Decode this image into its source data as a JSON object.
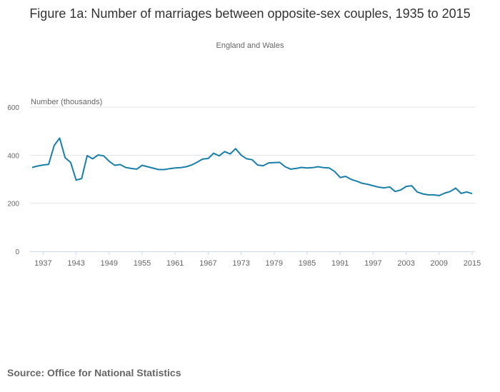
{
  "chart_data": {
    "type": "line",
    "title": "Figure 1a: Number of marriages between opposite-sex couples, 1935 to 2015",
    "subtitle": "England and Wales",
    "ylabel": "Number (thousands)",
    "xlabel": "",
    "ylim": [
      0,
      600
    ],
    "xlim": [
      1935,
      2015
    ],
    "yticks": [
      0,
      200,
      400,
      600
    ],
    "xticks": [
      1937,
      1943,
      1949,
      1955,
      1961,
      1967,
      1973,
      1979,
      1985,
      1991,
      1997,
      2003,
      2009,
      2015
    ],
    "grid": true,
    "color": "#1a7fa8",
    "series": [
      {
        "name": "Marriages",
        "x": [
          1935,
          1936,
          1937,
          1938,
          1939,
          1940,
          1941,
          1942,
          1943,
          1944,
          1945,
          1946,
          1947,
          1948,
          1949,
          1950,
          1951,
          1952,
          1953,
          1954,
          1955,
          1956,
          1957,
          1958,
          1959,
          1960,
          1961,
          1962,
          1963,
          1964,
          1965,
          1966,
          1967,
          1968,
          1969,
          1970,
          1971,
          1972,
          1973,
          1974,
          1975,
          1976,
          1977,
          1978,
          1979,
          1980,
          1981,
          1982,
          1983,
          1984,
          1985,
          1986,
          1987,
          1988,
          1989,
          1990,
          1991,
          1992,
          1993,
          1994,
          1995,
          1996,
          1997,
          1998,
          1999,
          2000,
          2001,
          2002,
          2003,
          2004,
          2005,
          2006,
          2007,
          2008,
          2009,
          2010,
          2011,
          2012,
          2013,
          2014,
          2015
        ],
        "values": [
          349,
          355,
          359,
          362,
          440,
          471,
          389,
          370,
          296,
          303,
          398,
          385,
          401,
          397,
          375,
          358,
          361,
          349,
          345,
          342,
          358,
          352,
          346,
          340,
          340,
          344,
          347,
          348,
          352,
          359,
          371,
          384,
          386,
          408,
          397,
          415,
          405,
          427,
          400,
          385,
          381,
          359,
          356,
          368,
          369,
          370,
          352,
          342,
          345,
          349,
          347,
          348,
          352,
          348,
          347,
          332,
          307,
          312,
          299,
          292,
          283,
          279,
          273,
          267,
          264,
          268,
          249,
          255,
          270,
          273,
          247,
          239,
          235,
          235,
          232,
          242,
          249,
          263,
          241,
          247,
          240
        ]
      }
    ]
  },
  "source": "Source: Office for National Statistics"
}
